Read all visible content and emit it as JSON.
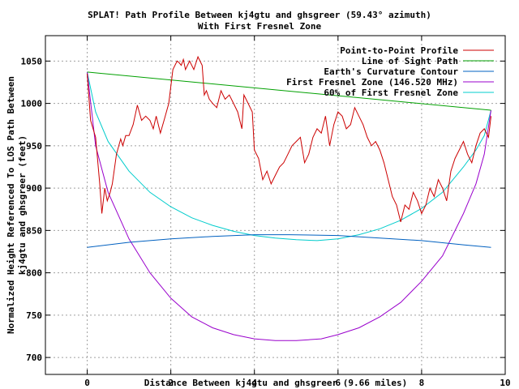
{
  "chart_data": {
    "type": "line",
    "title_line1": "SPLAT! Path Profile Between kj4gtu and ghsgreer (59.43° azimuth)",
    "title_line2": "With First Fresnel Zone",
    "xlabel": "Distance Between kj4gtu and ghsgreer (9.66 miles)",
    "ylabel_line1": "Normalized Height Referenced To LOS Path Between",
    "ylabel_line2": "kj4gtu and ghsgreer (feet)",
    "xlim": [
      -1,
      10
    ],
    "ylim": [
      680,
      1080
    ],
    "xticks": [
      0,
      2,
      4,
      6,
      8,
      10
    ],
    "yticks": [
      700,
      750,
      800,
      850,
      900,
      950,
      1000,
      1050
    ],
    "grid": true,
    "legend_position": "top-right",
    "series": [
      {
        "name": "Point-to-Point Profile",
        "color": "#cc0000",
        "x": [
          0,
          0.08,
          0.2,
          0.3,
          0.35,
          0.42,
          0.48,
          0.55,
          0.6,
          0.7,
          0.8,
          0.85,
          0.92,
          1.0,
          1.1,
          1.2,
          1.3,
          1.4,
          1.5,
          1.58,
          1.65,
          1.75,
          1.85,
          1.95,
          2.05,
          2.15,
          2.2,
          2.25,
          2.3,
          2.35,
          2.45,
          2.55,
          2.65,
          2.75,
          2.8,
          2.85,
          2.92,
          3.0,
          3.1,
          3.2,
          3.3,
          3.4,
          3.5,
          3.6,
          3.7,
          3.75,
          3.85,
          3.95,
          4.0,
          4.1,
          4.2,
          4.3,
          4.4,
          4.5,
          4.6,
          4.7,
          4.8,
          4.9,
          5.0,
          5.1,
          5.2,
          5.3,
          5.4,
          5.5,
          5.6,
          5.7,
          5.8,
          5.9,
          6.0,
          6.1,
          6.2,
          6.3,
          6.4,
          6.5,
          6.6,
          6.7,
          6.8,
          6.9,
          7.0,
          7.1,
          7.2,
          7.3,
          7.4,
          7.5,
          7.6,
          7.7,
          7.8,
          7.9,
          8.0,
          8.1,
          8.2,
          8.3,
          8.4,
          8.5,
          8.6,
          8.7,
          8.8,
          8.9,
          9.0,
          9.1,
          9.2,
          9.3,
          9.4,
          9.5,
          9.6,
          9.66
        ],
        "y": [
          1035,
          980,
          960,
          905,
          870,
          900,
          885,
          895,
          905,
          940,
          958,
          950,
          962,
          962,
          975,
          998,
          980,
          985,
          980,
          970,
          985,
          965,
          982,
          1000,
          1040,
          1050,
          1048,
          1045,
          1052,
          1040,
          1050,
          1040,
          1055,
          1045,
          1010,
          1015,
          1005,
          1000,
          995,
          1015,
          1005,
          1010,
          1000,
          990,
          970,
          1010,
          1000,
          990,
          945,
          935,
          910,
          920,
          905,
          915,
          925,
          930,
          940,
          950,
          955,
          960,
          930,
          940,
          960,
          970,
          965,
          985,
          950,
          975,
          990,
          985,
          970,
          975,
          995,
          985,
          975,
          960,
          950,
          955,
          945,
          930,
          910,
          890,
          880,
          860,
          880,
          875,
          895,
          885,
          870,
          880,
          900,
          890,
          910,
          900,
          885,
          920,
          935,
          945,
          955,
          940,
          930,
          950,
          965,
          970,
          960,
          985
        ]
      },
      {
        "name": "Line of Sight Path",
        "color": "#00a000",
        "x": [
          0,
          9.66
        ],
        "y": [
          1037,
          992
        ]
      },
      {
        "name": "Earth's Curvature Contour",
        "color": "#0060c0",
        "x": [
          0,
          1,
          2,
          3,
          4,
          4.83,
          6,
          7,
          8,
          9,
          9.66
        ],
        "y": [
          830,
          836,
          840,
          843,
          845,
          845,
          844,
          841,
          838,
          833,
          830
        ]
      },
      {
        "name": "First Fresnel Zone (146.520 MHz)",
        "color": "#9900cc",
        "x": [
          0,
          0.2,
          0.5,
          1,
          1.5,
          2,
          2.5,
          3,
          3.5,
          4,
          4.5,
          5,
          5.3,
          5.6,
          6,
          6.5,
          7,
          7.5,
          8,
          8.5,
          9,
          9.3,
          9.5,
          9.66
        ],
        "y": [
          1037,
          950,
          895,
          840,
          800,
          770,
          748,
          735,
          727,
          722,
          720,
          720,
          721,
          722,
          727,
          735,
          748,
          765,
          790,
          820,
          870,
          905,
          940,
          992
        ]
      },
      {
        "name": "60% of First Fresnel Zone",
        "color": "#00cccc",
        "x": [
          0,
          0.2,
          0.5,
          1,
          1.5,
          2,
          2.5,
          3,
          3.5,
          4,
          4.5,
          5,
          5.5,
          6,
          6.5,
          7,
          7.5,
          8,
          8.5,
          9,
          9.3,
          9.5,
          9.66
        ],
        "y": [
          1037,
          990,
          955,
          920,
          895,
          878,
          865,
          856,
          849,
          844,
          841,
          839,
          838,
          840,
          845,
          852,
          862,
          876,
          895,
          925,
          945,
          962,
          992
        ]
      }
    ]
  }
}
